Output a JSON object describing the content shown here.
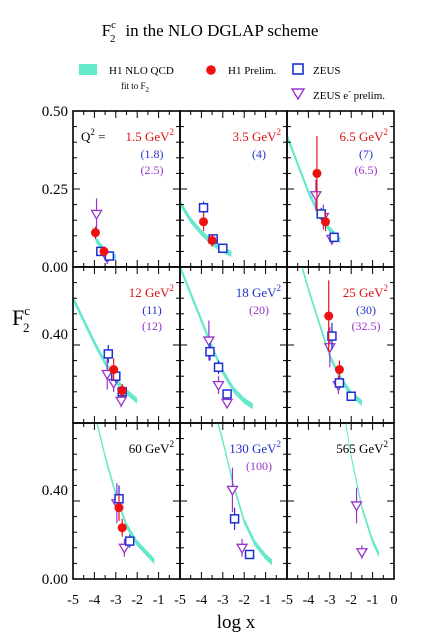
{
  "figure": {
    "title_main": "F",
    "title_sup": "c",
    "title_sub": "2",
    "title_rest": "in the NLO DGLAP scheme",
    "ylabel_main": "F",
    "ylabel_sup": "c",
    "ylabel_sub": "2",
    "xlabel": "log x"
  },
  "legend": {
    "h1_fit_line1": "H1 NLO QCD",
    "h1_fit_line2": "fit to F",
    "h1_fit_line2_sub": "2",
    "h1_prelim": "H1 Prelim.",
    "zeus": "ZEUS",
    "zeus_eminus_a": "ZEUS e",
    "zeus_eminus_sup": "-",
    "zeus_eminus_b": " prelim."
  },
  "colors": {
    "band": "#66e8cc",
    "h1": "#ee1111",
    "zeus": "#1a2fd6",
    "zeus_eminus": "#9933cc",
    "text": "#000000",
    "label_h1": "#dd1111",
    "label_zeus": "#2233cc",
    "label_eminus": "#9933cc"
  },
  "axes": {
    "q2_prefix": "Q",
    "q2_sup": "2",
    "q2_eq": " = ",
    "gev2": "GeV",
    "gev2_sup": "2",
    "xlim": [
      -5,
      0
    ],
    "row_ylims": [
      [
        0,
        0.5
      ],
      [
        0,
        0.7
      ],
      [
        0,
        0.7
      ]
    ],
    "row_yticks": [
      [
        "0.00",
        "0.25",
        "0.50"
      ],
      [
        "0.40"
      ],
      [
        "0.00",
        "0.40"
      ]
    ],
    "xtick_labels": [
      "-5",
      "-4",
      "-3",
      "-2",
      "-1",
      "0"
    ]
  },
  "chart_data": [
    {
      "type": "scatter",
      "panel": 1,
      "q2": "1.5",
      "labels": [
        "(1.8)",
        "(2.5)"
      ],
      "label_color": "h1",
      "band": [
        [
          -4.1,
          0.125
        ],
        [
          -3.9,
          0.085
        ],
        [
          -3.6,
          0.058
        ],
        [
          -3.3,
          0.04
        ],
        [
          -3.0,
          0.03
        ]
      ],
      "h1": [
        {
          "x": -3.95,
          "y": 0.11,
          "e": 0.02
        },
        {
          "x": -3.55,
          "y": 0.05,
          "e": 0.015
        }
      ],
      "zeus": [
        {
          "x": -3.7,
          "y": 0.05,
          "e": 0.01
        },
        {
          "x": -3.3,
          "y": 0.035,
          "e": 0.01
        }
      ],
      "eminus": [
        {
          "x": -3.9,
          "y": 0.17,
          "e": 0.05
        },
        {
          "x": -3.4,
          "y": 0.03,
          "e": 0.02
        }
      ]
    },
    {
      "type": "scatter",
      "panel": 2,
      "q2": "3.5",
      "labels": [
        "(4)"
      ],
      "label_color": "h1",
      "band": [
        [
          -5.0,
          0.205
        ],
        [
          -4.5,
          0.15
        ],
        [
          -4.0,
          0.11
        ],
        [
          -3.5,
          0.078
        ],
        [
          -3.0,
          0.055
        ],
        [
          -2.6,
          0.042
        ]
      ],
      "h1": [
        {
          "x": -3.9,
          "y": 0.145,
          "e": 0.03
        },
        {
          "x": -3.5,
          "y": 0.085,
          "e": 0.02
        }
      ],
      "zeus": [
        {
          "x": -3.9,
          "y": 0.19,
          "e": 0.02
        },
        {
          "x": -3.45,
          "y": 0.09,
          "e": 0.01
        },
        {
          "x": -3.0,
          "y": 0.06,
          "e": 0.01
        }
      ],
      "eminus": []
    },
    {
      "type": "scatter",
      "panel": 3,
      "q2": "6.5",
      "labels": [
        "(7)",
        "(6.5)"
      ],
      "label_color": "h1",
      "band": [
        [
          -5.0,
          0.42
        ],
        [
          -4.5,
          0.33
        ],
        [
          -4.0,
          0.24
        ],
        [
          -3.5,
          0.17
        ],
        [
          -3.0,
          0.12
        ],
        [
          -2.5,
          0.085
        ]
      ],
      "h1": [
        {
          "x": -3.6,
          "y": 0.3,
          "e": 0.12
        },
        {
          "x": -3.2,
          "y": 0.145,
          "e": 0.03
        }
      ],
      "zeus": [
        {
          "x": -3.4,
          "y": 0.17,
          "e": 0.02
        },
        {
          "x": -2.8,
          "y": 0.095,
          "e": 0.015
        }
      ],
      "eminus": [
        {
          "x": -3.65,
          "y": 0.23,
          "e": 0.05
        },
        {
          "x": -3.3,
          "y": 0.16,
          "e": 0.04
        },
        {
          "x": -2.9,
          "y": 0.09,
          "e": 0.02
        }
      ]
    },
    {
      "type": "scatter",
      "panel": 4,
      "q2": "12",
      "labels": [
        "(11)",
        "(12)"
      ],
      "label_color": "h1",
      "band": [
        [
          -5.0,
          0.56
        ],
        [
          -4.5,
          0.46
        ],
        [
          -4.0,
          0.36
        ],
        [
          -3.5,
          0.27
        ],
        [
          -3.0,
          0.19
        ],
        [
          -2.5,
          0.14
        ],
        [
          -2.0,
          0.1
        ]
      ],
      "h1": [
        {
          "x": -3.1,
          "y": 0.24,
          "e": 0.05
        },
        {
          "x": -2.7,
          "y": 0.145,
          "e": 0.03
        }
      ],
      "zeus": [
        {
          "x": -3.35,
          "y": 0.31,
          "e": 0.04
        },
        {
          "x": -3.0,
          "y": 0.21,
          "e": 0.03
        },
        {
          "x": -2.7,
          "y": 0.14,
          "e": 0.02
        }
      ],
      "eminus": [
        {
          "x": -3.4,
          "y": 0.22,
          "e": 0.07
        },
        {
          "x": -3.1,
          "y": 0.18,
          "e": 0.04
        },
        {
          "x": -2.75,
          "y": 0.1,
          "e": 0.03
        }
      ]
    },
    {
      "type": "scatter",
      "panel": 5,
      "q2": "18",
      "labels": [
        "(20)"
      ],
      "label_color": "zeus",
      "band": [
        [
          -5.0,
          0.7
        ],
        [
          -4.5,
          0.58
        ],
        [
          -4.0,
          0.46
        ],
        [
          -3.5,
          0.34
        ],
        [
          -3.0,
          0.23
        ],
        [
          -2.5,
          0.15
        ],
        [
          -2.0,
          0.1
        ],
        [
          -1.6,
          0.075
        ]
      ],
      "h1": [],
      "zeus": [
        {
          "x": -3.6,
          "y": 0.32,
          "e": 0.04
        },
        {
          "x": -3.2,
          "y": 0.25,
          "e": 0.03
        },
        {
          "x": -2.8,
          "y": 0.13,
          "e": 0.02
        }
      ],
      "eminus": [
        {
          "x": -3.65,
          "y": 0.37,
          "e": 0.09
        },
        {
          "x": -3.2,
          "y": 0.17,
          "e": 0.04
        },
        {
          "x": -2.8,
          "y": 0.09,
          "e": 0.02
        }
      ]
    },
    {
      "type": "scatter",
      "panel": 6,
      "q2": "25",
      "labels": [
        "(30)",
        "(32.5)"
      ],
      "label_color": "h1",
      "band": [
        [
          -4.3,
          0.7
        ],
        [
          -4.0,
          0.6
        ],
        [
          -3.5,
          0.45
        ],
        [
          -3.0,
          0.3
        ],
        [
          -2.5,
          0.2
        ],
        [
          -2.0,
          0.13
        ],
        [
          -1.5,
          0.09
        ]
      ],
      "h1": [
        {
          "x": -3.05,
          "y": 0.48,
          "e": 0.16
        },
        {
          "x": -2.55,
          "y": 0.24,
          "e": 0.04
        }
      ],
      "zeus": [
        {
          "x": -2.9,
          "y": 0.39,
          "e": 0.06
        },
        {
          "x": -2.55,
          "y": 0.18,
          "e": 0.03
        },
        {
          "x": -2.0,
          "y": 0.12,
          "e": 0.02
        }
      ],
      "eminus": [
        {
          "x": -3.0,
          "y": 0.34,
          "e": 0.09
        },
        {
          "x": -2.6,
          "y": 0.17,
          "e": 0.04
        }
      ]
    },
    {
      "type": "scatter",
      "panel": 7,
      "q2": "60",
      "labels": [],
      "label_color": "text",
      "band": [
        [
          -4.6,
          0.9
        ],
        [
          -4.0,
          0.75
        ],
        [
          -3.5,
          0.55
        ],
        [
          -3.0,
          0.38
        ],
        [
          -2.5,
          0.24
        ],
        [
          -2.0,
          0.16
        ],
        [
          -1.5,
          0.11
        ],
        [
          -1.2,
          0.08
        ]
      ],
      "h1": [
        {
          "x": -2.85,
          "y": 0.32,
          "e": 0.06
        },
        {
          "x": -2.7,
          "y": 0.23,
          "e": 0.04
        }
      ],
      "zeus": [
        {
          "x": -2.85,
          "y": 0.36,
          "e": 0.06
        },
        {
          "x": -2.35,
          "y": 0.17,
          "e": 0.03
        }
      ],
      "eminus": [
        {
          "x": -2.95,
          "y": 0.34,
          "e": 0.09
        },
        {
          "x": -2.6,
          "y": 0.14,
          "e": 0.04
        }
      ]
    },
    {
      "type": "scatter",
      "panel": 8,
      "q2": "130",
      "labels": [
        "(100)"
      ],
      "label_color": "zeus",
      "band": [
        [
          -3.8,
          0.9
        ],
        [
          -3.0,
          0.62
        ],
        [
          -2.5,
          0.42
        ],
        [
          -2.0,
          0.26
        ],
        [
          -1.5,
          0.16
        ],
        [
          -1.0,
          0.1
        ],
        [
          -0.7,
          0.075
        ]
      ],
      "h1": [],
      "zeus": [
        {
          "x": -2.45,
          "y": 0.27,
          "e": 0.05
        },
        {
          "x": -1.75,
          "y": 0.11,
          "e": 0.02
        }
      ],
      "eminus": [
        {
          "x": -2.55,
          "y": 0.4,
          "e": 0.1
        },
        {
          "x": -2.1,
          "y": 0.14,
          "e": 0.04
        }
      ]
    },
    {
      "type": "scatter",
      "panel": 9,
      "q2": "565",
      "labels": [],
      "label_color": "text",
      "band": [
        [
          -2.6,
          0.9
        ],
        [
          -2.0,
          0.55
        ],
        [
          -1.5,
          0.32
        ],
        [
          -1.0,
          0.17
        ],
        [
          -0.7,
          0.11
        ]
      ],
      "h1": [],
      "zeus": [],
      "eminus": [
        {
          "x": -1.75,
          "y": 0.33,
          "e": 0.08
        },
        {
          "x": -1.5,
          "y": 0.12,
          "e": 0.03
        }
      ]
    }
  ]
}
